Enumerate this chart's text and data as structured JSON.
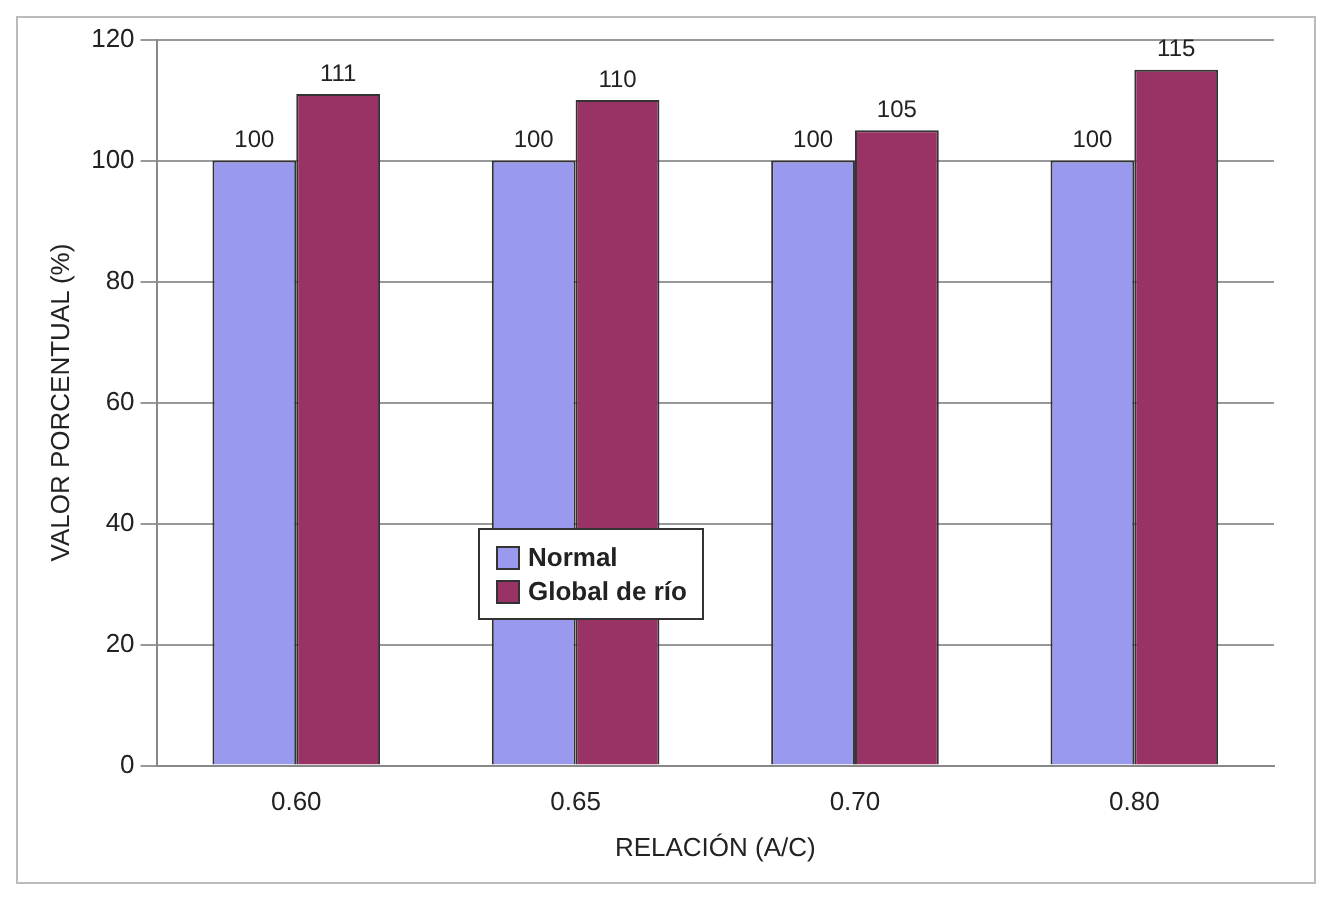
{
  "chart_data": {
    "type": "bar",
    "xlabel": "RELACIÓN (A/C)",
    "ylabel": "VALOR PORCENTUAL (%)",
    "categories": [
      "0.60",
      "0.65",
      "0.70",
      "0.80"
    ],
    "series": [
      {
        "name": "Normal",
        "color": "#9999ee",
        "values": [
          100,
          100,
          100,
          100
        ]
      },
      {
        "name": "Global de río",
        "color": "#993366",
        "values": [
          111,
          110,
          105,
          115
        ]
      }
    ],
    "ylim": [
      0,
      120
    ],
    "yticks": [
      0,
      20,
      40,
      60,
      80,
      100,
      120
    ],
    "grid": "y",
    "legend": "bottom left",
    "data_labels": true
  }
}
